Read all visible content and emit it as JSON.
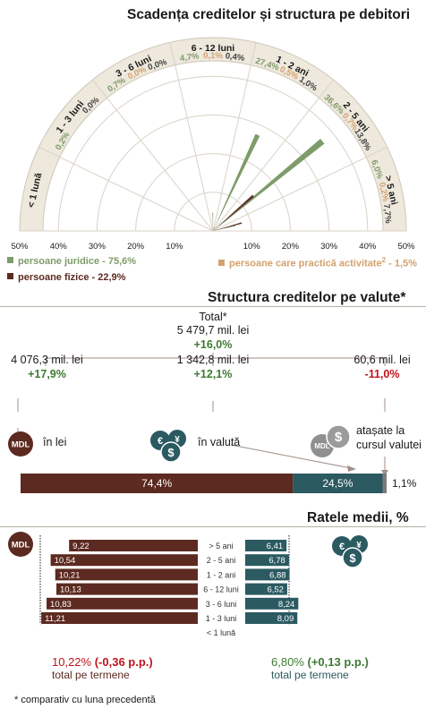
{
  "colors": {
    "juridice": "#7e9c6a",
    "fizice": "#5c2a20",
    "activitate": "#d2a26d",
    "teal": "#2b5a61",
    "maroon": "#5c2a20",
    "grey": "#7b7b7b",
    "green_text": "#3e7a32",
    "red_text": "#c0141c",
    "arc_fill": "#eee8dd"
  },
  "section1": {
    "title": "Scadența creditelor și structura pe debitori",
    "legend": {
      "juridice": "persoane juridice - 75,6%",
      "fizice": "persoane fizice - 22,9%",
      "activitate": "persoane care practică activitate",
      "activitate_sup": "2",
      "activitate_val": " - 1,5%"
    }
  },
  "chart_data": [
    {
      "type": "polar-bar",
      "title": "Scadența creditelor și structura pe debitori",
      "categories": [
        "< 1 lună",
        "1 - 3 luni",
        "3 - 6 luni",
        "6 - 12 luni",
        "1 - 2 ani",
        "2 - 5 ani",
        "> 5 ani"
      ],
      "series": [
        {
          "name": "persoane juridice - 75,6%",
          "values": [
            null,
            0.2,
            0.7,
            4.7,
            27.4,
            36.6,
            6.0
          ],
          "labels": [
            "",
            "0,2%",
            "0,7%",
            "4,7%",
            "27,4%",
            "36,6%",
            "6,0%"
          ]
        },
        {
          "name": "persoane fizice - 22,9%",
          "values": [
            null,
            0.0,
            0.0,
            0.4,
            1.0,
            13.8,
            7.7
          ],
          "labels": [
            "",
            "0,0%",
            "0,0%",
            "0,4%",
            "1,0%",
            "13,8%",
            "7,7%"
          ]
        },
        {
          "name": "persoane care practică activitate - 1,5%",
          "values": [
            null,
            null,
            0.0,
            0.1,
            0.5,
            0.7,
            0.2
          ],
          "labels": [
            "",
            "",
            "0,0%",
            "0,1%",
            "0,5%",
            "0,7%",
            "0,2%"
          ]
        }
      ],
      "radial_axis": {
        "ticks": [
          "10%",
          "20%",
          "30%",
          "40%",
          "50%"
        ],
        "ticks_left": [
          "50%",
          "40%",
          "30%",
          "20%",
          "10%"
        ],
        "range": [
          0,
          50
        ]
      }
    },
    {
      "type": "stacked-bar",
      "title": "Structura creditelor pe valute*",
      "categories": [
        "în lei",
        "în valută",
        "atașate la cursul valutei"
      ],
      "values": [
        74.4,
        24.5,
        1.1
      ],
      "labels": [
        "74,4%",
        "24,5%",
        "1,1%"
      ]
    },
    {
      "type": "bar",
      "title": "Ratele medii, %",
      "categories": [
        "> 5 ani",
        "2 - 5 ani",
        "1 - 2 ani",
        "6 - 12 luni",
        "3 - 6 luni",
        "1 - 3 luni",
        "< 1 lună"
      ],
      "series": [
        {
          "name": "MDL",
          "values": [
            9.22,
            10.54,
            10.21,
            10.13,
            10.83,
            11.21,
            null
          ],
          "labels": [
            "9,22",
            "10,54",
            "10,21",
            "10,13",
            "10,83",
            "11,21",
            ""
          ]
        },
        {
          "name": "valută",
          "values": [
            6.41,
            6.78,
            6.88,
            6.52,
            8.24,
            8.09,
            null
          ],
          "labels": [
            "6,41",
            "6,78",
            "6,88",
            "6,52",
            "8,24",
            "8,09",
            ""
          ]
        }
      ]
    }
  ],
  "section2": {
    "title": "Structura creditelor pe valute*",
    "total_label": "Total*",
    "total_value": "5 479,7 mil. lei",
    "total_change": "+16,0%",
    "lei_value": "4 076,3 mil. lei",
    "lei_change": "+17,9%",
    "valuta_value": "1 342,8 mil. lei",
    "valuta_change": "+12,1%",
    "atasate_value": "60,6 mil. lei",
    "atasate_change": "-11,0%",
    "mdl_badge": "MDL",
    "lei_label": "în lei",
    "valuta_label": "în valută",
    "atasate_label_1": "atașate la",
    "atasate_label_2": "cursul valutei",
    "currency_icon_1": "€",
    "currency_icon_2": "¥",
    "currency_icon_3": "$"
  },
  "section3": {
    "title": "Ratele medii, %",
    "mdl_badge": "MDL",
    "mdl_total_value": "10,22%",
    "mdl_total_change": "(-0,36 p.p.)",
    "mdl_total_label": "total pe termene",
    "fx_total_value": "6,80%",
    "fx_total_change": "(+0,13 p.p.)",
    "fx_total_label": "total pe termene"
  },
  "footnote": "* comparativ cu luna precedentă"
}
